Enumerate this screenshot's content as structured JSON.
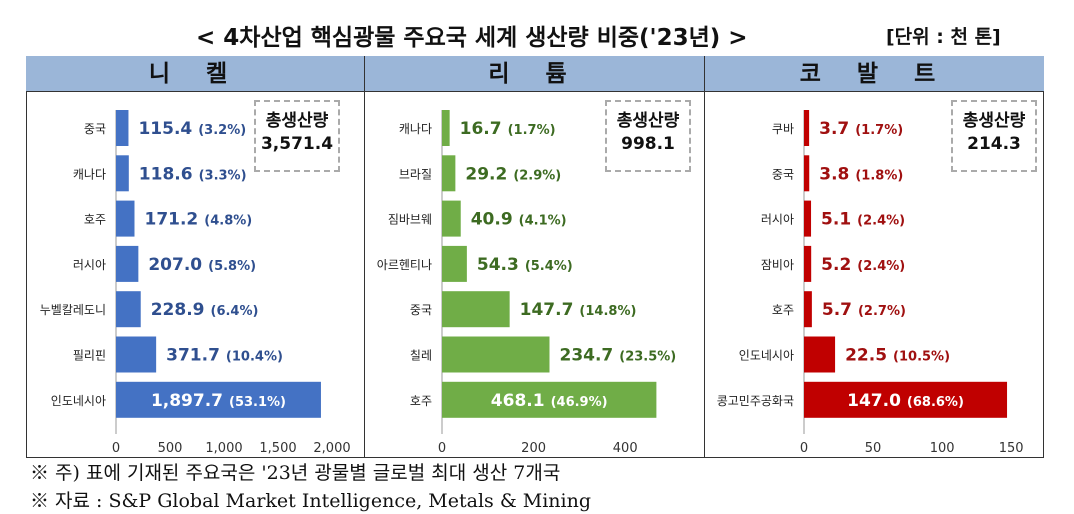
{
  "header": {
    "title": "< 4차산업 핵심광물 주요국 세계 생산량 비중('23년) >",
    "unit": "[단위 : 천 톤]"
  },
  "footnotes": [
    "※ 주) 표에 기재된 주요국은 '23년 광물별 글로벌 최대 생산 7개국",
    "※ 자료 : S&P Global Market Intelligence, Metals & Mining"
  ],
  "chart_data": [
    {
      "type": "bar",
      "orientation": "horizontal",
      "title": "니 켈",
      "total_label": "총생산량",
      "total": "3,571.4",
      "categories": [
        "중국",
        "캐나다",
        "호주",
        "러시아",
        "누벨칼레도니",
        "필리핀",
        "인도네시아"
      ],
      "values": [
        115.4,
        118.6,
        171.2,
        207.0,
        228.9,
        371.7,
        1897.7
      ],
      "value_labels": [
        "115.4",
        "118.6",
        "171.2",
        "207.0",
        "228.9",
        "371.7",
        "1,897.7"
      ],
      "share_labels": [
        "(3.2%)",
        "(3.3%)",
        "(4.8%)",
        "(5.8%)",
        "(6.4%)",
        "(10.4%)",
        "(53.1%)"
      ],
      "xlim": [
        0,
        2000
      ],
      "xticks": [
        0,
        500,
        1000,
        1500,
        2000
      ],
      "xtick_labels": [
        "0",
        "500",
        "1,000",
        "1,500",
        "2,000"
      ],
      "color": "#4472c4",
      "label_color": "#2f4f8f"
    },
    {
      "type": "bar",
      "orientation": "horizontal",
      "title": "리 튬",
      "total_label": "총생산량",
      "total": "998.1",
      "categories": [
        "캐나다",
        "브라질",
        "짐바브웨",
        "아르헨티나",
        "중국",
        "칠레",
        "호주"
      ],
      "values": [
        16.7,
        29.2,
        40.9,
        54.3,
        147.7,
        234.7,
        468.1
      ],
      "value_labels": [
        "16.7",
        "29.2",
        "40.9",
        "54.3",
        "147.7",
        "234.7",
        "468.1"
      ],
      "share_labels": [
        "(1.7%)",
        "(2.9%)",
        "(4.1%)",
        "(5.4%)",
        "(14.8%)",
        "(23.5%)",
        "(46.9%)"
      ],
      "xlim": [
        0,
        500
      ],
      "xticks": [
        0,
        200,
        400
      ],
      "xtick_labels": [
        "0",
        "200",
        "400"
      ],
      "color": "#70ad47",
      "label_color": "#3d6b22"
    },
    {
      "type": "bar",
      "orientation": "horizontal",
      "title": "코 발 트",
      "total_label": "총생산량",
      "total": "214.3",
      "categories": [
        "쿠바",
        "중국",
        "러시아",
        "잠비아",
        "호주",
        "인도네시아",
        "콩고민주공화국"
      ],
      "values": [
        3.7,
        3.8,
        5.1,
        5.2,
        5.7,
        22.5,
        147.0
      ],
      "value_labels": [
        "3.7",
        "3.8",
        "5.1",
        "5.2",
        "5.7",
        "22.5",
        "147.0"
      ],
      "share_labels": [
        "(1.7%)",
        "(1.8%)",
        "(2.4%)",
        "(2.4%)",
        "(2.7%)",
        "(10.5%)",
        "(68.6%)"
      ],
      "xlim": [
        0,
        160
      ],
      "xticks": [
        0,
        50,
        100,
        150
      ],
      "xtick_labels": [
        "0",
        "50",
        "100",
        "150"
      ],
      "color": "#c00000",
      "label_color": "#a01010"
    }
  ]
}
